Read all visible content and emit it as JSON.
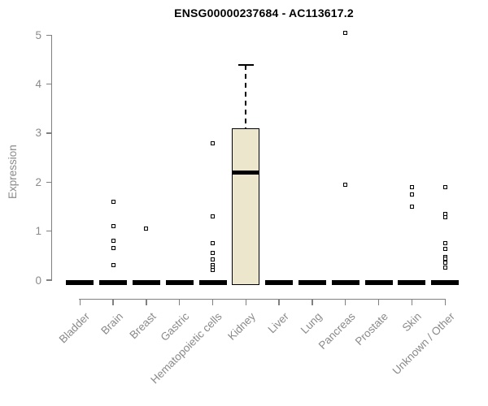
{
  "chart_data": {
    "type": "boxplot",
    "title": "ENSG00000237684 - AC113617.2",
    "ylabel": "Expression",
    "xlabel": "",
    "ylim": [
      0,
      5
    ],
    "yticks": [
      0,
      1,
      2,
      3,
      4,
      5
    ],
    "grid": "off",
    "legend": "none",
    "categories": [
      "Bladder",
      "Brain",
      "Breast",
      "Gastric",
      "Hematopoietic cells",
      "Kidney",
      "Liver",
      "Lung",
      "Pancreas",
      "Prostate",
      "Skin",
      "Unknown / Other"
    ],
    "boxes": [
      {
        "category": "Bladder",
        "q1": 0,
        "median": 0,
        "q3": 0,
        "whisker_low": 0,
        "whisker_high": 0,
        "outliers": []
      },
      {
        "category": "Brain",
        "q1": 0,
        "median": 0,
        "q3": 0,
        "whisker_low": 0,
        "whisker_high": 0,
        "outliers": [
          1.6,
          1.1,
          0.8,
          0.65,
          0.3
        ]
      },
      {
        "category": "Breast",
        "q1": 0,
        "median": 0,
        "q3": 0,
        "whisker_low": 0,
        "whisker_high": 0,
        "outliers": [
          1.05
        ]
      },
      {
        "category": "Gastric",
        "q1": 0,
        "median": 0,
        "q3": 0,
        "whisker_low": 0,
        "whisker_high": 0,
        "outliers": []
      },
      {
        "category": "Hematopoietic cells",
        "q1": 0,
        "median": 0,
        "q3": 0,
        "whisker_low": 0,
        "whisker_high": 0,
        "outliers": [
          2.8,
          1.3,
          0.75,
          0.55,
          0.42,
          0.3,
          0.25,
          0.2
        ]
      },
      {
        "category": "Kidney",
        "q1": 0,
        "median": 2.2,
        "q3": 3.1,
        "whisker_low": 0,
        "whisker_high": 4.4,
        "outliers": []
      },
      {
        "category": "Liver",
        "q1": 0,
        "median": 0,
        "q3": 0,
        "whisker_low": 0,
        "whisker_high": 0,
        "outliers": []
      },
      {
        "category": "Lung",
        "q1": 0,
        "median": 0,
        "q3": 0,
        "whisker_low": 0,
        "whisker_high": 0,
        "outliers": []
      },
      {
        "category": "Pancreas",
        "q1": 0,
        "median": 0,
        "q3": 0,
        "whisker_low": 0,
        "whisker_high": 0,
        "outliers": [
          5.05,
          1.95
        ]
      },
      {
        "category": "Prostate",
        "q1": 0,
        "median": 0,
        "q3": 0,
        "whisker_low": 0,
        "whisker_high": 0,
        "outliers": []
      },
      {
        "category": "Skin",
        "q1": 0,
        "median": 0,
        "q3": 0,
        "whisker_low": 0,
        "whisker_high": 0,
        "outliers": [
          1.9,
          1.75,
          1.5
        ]
      },
      {
        "category": "Unknown / Other",
        "q1": 0,
        "median": 0,
        "q3": 0,
        "whisker_low": 0,
        "whisker_high": 0,
        "outliers": [
          1.9,
          1.35,
          1.28,
          0.76,
          0.63,
          0.48,
          0.44,
          0.36,
          0.26
        ]
      }
    ],
    "colors": {
      "box_fill": "#ECE6CC",
      "box_stroke": "#000000",
      "axis_line": "#808080",
      "tick_label": "#8a8a8a",
      "title_text": "#000000"
    }
  }
}
